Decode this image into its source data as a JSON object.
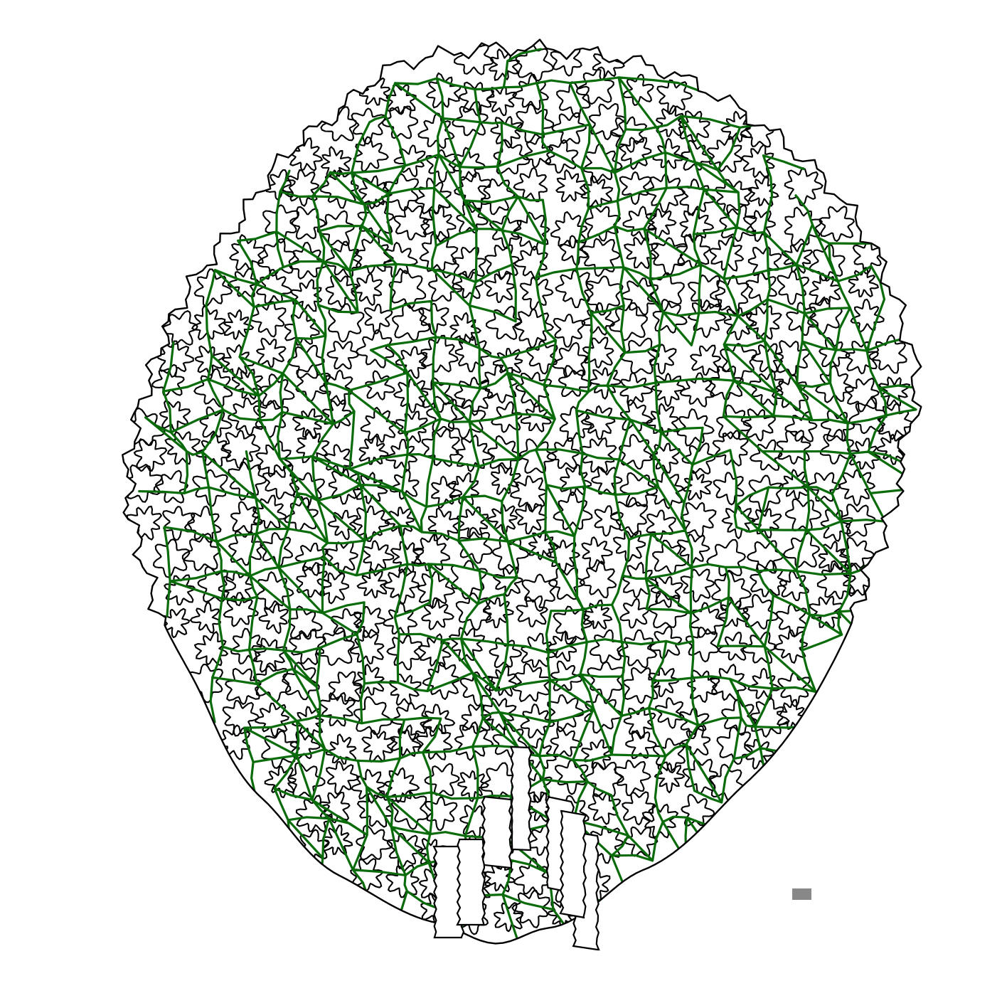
{
  "figure": {
    "colors": {
      "background": "#ffffff",
      "cell_outline": "#000000",
      "vein_network": "#0a6b0a",
      "scale_bar": "#888888"
    },
    "icons": {
      "leaf": "leaf-outline-icon",
      "cells": "pavement-cell-icon",
      "veins": "vein-network-icon",
      "scale": "scale-bar-icon"
    }
  }
}
